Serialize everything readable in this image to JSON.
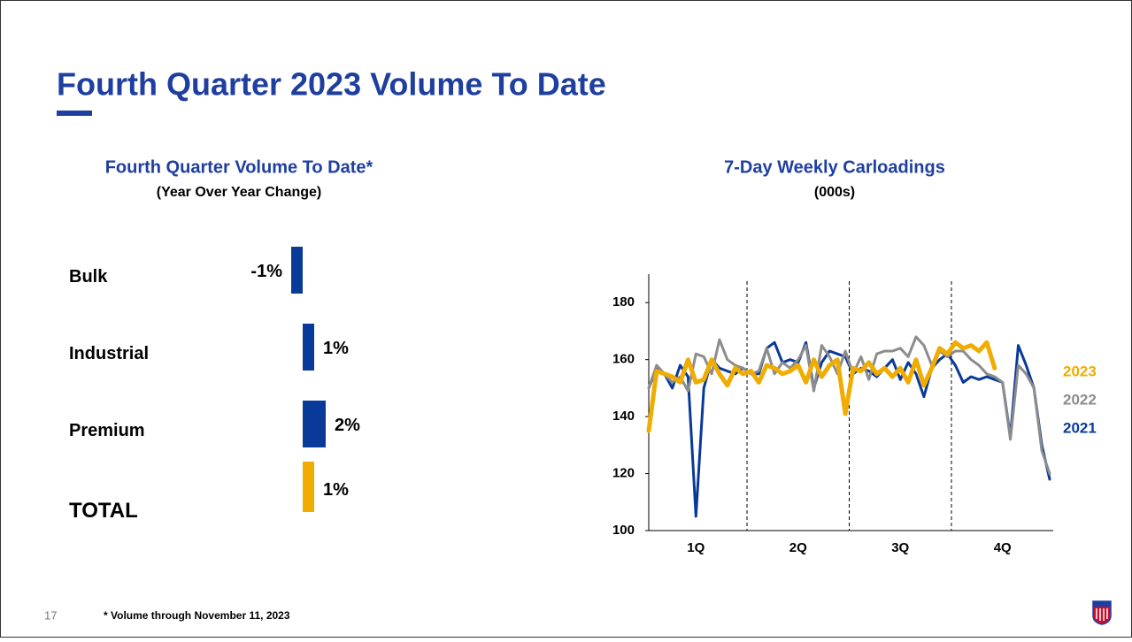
{
  "title": "Fourth Quarter 2023 Volume To Date",
  "page_number": "17",
  "footnote": "* Volume through November 11, 2023",
  "chart_data": [
    {
      "type": "hbar",
      "title": "Fourth Quarter Volume To Date*",
      "subtitle": "(Year Over Year Change)",
      "categories": [
        "Bulk",
        "Industrial",
        "Premium",
        "TOTAL"
      ],
      "values": [
        -1,
        1,
        2,
        1
      ],
      "value_labels": [
        "-1%",
        "1%",
        "2%",
        "1%"
      ],
      "colors": [
        "#0a3a99",
        "#0a3a99",
        "#0a3a99",
        "#f0ac00"
      ]
    },
    {
      "type": "line",
      "title": "7-Day Weekly Carloadings",
      "subtitle": "(000s)",
      "x": [
        1,
        2,
        3,
        4,
        5,
        6,
        7,
        8,
        9,
        10,
        11,
        12,
        13,
        14,
        15,
        16,
        17,
        18,
        19,
        20,
        21,
        22,
        23,
        24,
        25,
        26,
        27,
        28,
        29,
        30,
        31,
        32,
        33,
        34,
        35,
        36,
        37,
        38,
        39,
        40,
        41,
        42,
        43,
        44,
        45,
        46,
        47,
        48,
        49,
        50,
        51,
        52
      ],
      "xlim": [
        1,
        52
      ],
      "xticks": [
        {
          "value": 7,
          "label": "1Q"
        },
        {
          "value": 20,
          "label": "2Q"
        },
        {
          "value": 33,
          "label": "3Q"
        },
        {
          "value": 46,
          "label": "4Q"
        }
      ],
      "ylim": [
        100,
        190
      ],
      "yticks": [
        100,
        120,
        140,
        160,
        180
      ],
      "series": [
        {
          "name": "2023",
          "color": "#f0ac00",
          "values": [
            135,
            156,
            155,
            154,
            152,
            160,
            152,
            153,
            160,
            155,
            151,
            157,
            155,
            156,
            152,
            158,
            157,
            155,
            156,
            158,
            152,
            160,
            154,
            158,
            160,
            141,
            157,
            156,
            159,
            155,
            157,
            154,
            157,
            152,
            160,
            151,
            157,
            164,
            162,
            166,
            164,
            165,
            163,
            166,
            157,
            null,
            null,
            null,
            null,
            null,
            null,
            null
          ]
        },
        {
          "name": "2022",
          "color": "#8c8c8c",
          "values": [
            150,
            158,
            155,
            152,
            154,
            149,
            162,
            161,
            155,
            167,
            160,
            158,
            157,
            155,
            156,
            164,
            155,
            159,
            157,
            160,
            165,
            149,
            165,
            161,
            155,
            163,
            155,
            161,
            153,
            162,
            163,
            163,
            164,
            161,
            168,
            165,
            158,
            163,
            161,
            163,
            163,
            160,
            158,
            155,
            154,
            152,
            132,
            158,
            155,
            150,
            128,
            120
          ]
        },
        {
          "name": "2021",
          "color": "#0a3a99",
          "values": [
            150,
            157,
            155,
            150,
            158,
            154,
            105,
            150,
            160,
            157,
            156,
            155,
            157,
            155,
            155,
            164,
            166,
            159,
            160,
            159,
            166,
            150,
            159,
            163,
            162,
            161,
            155,
            157,
            156,
            154,
            157,
            160,
            153,
            159,
            155,
            147,
            157,
            160,
            162,
            158,
            152,
            154,
            153,
            154,
            153,
            152,
            133,
            165,
            158,
            150,
            130,
            118
          ]
        }
      ]
    }
  ]
}
